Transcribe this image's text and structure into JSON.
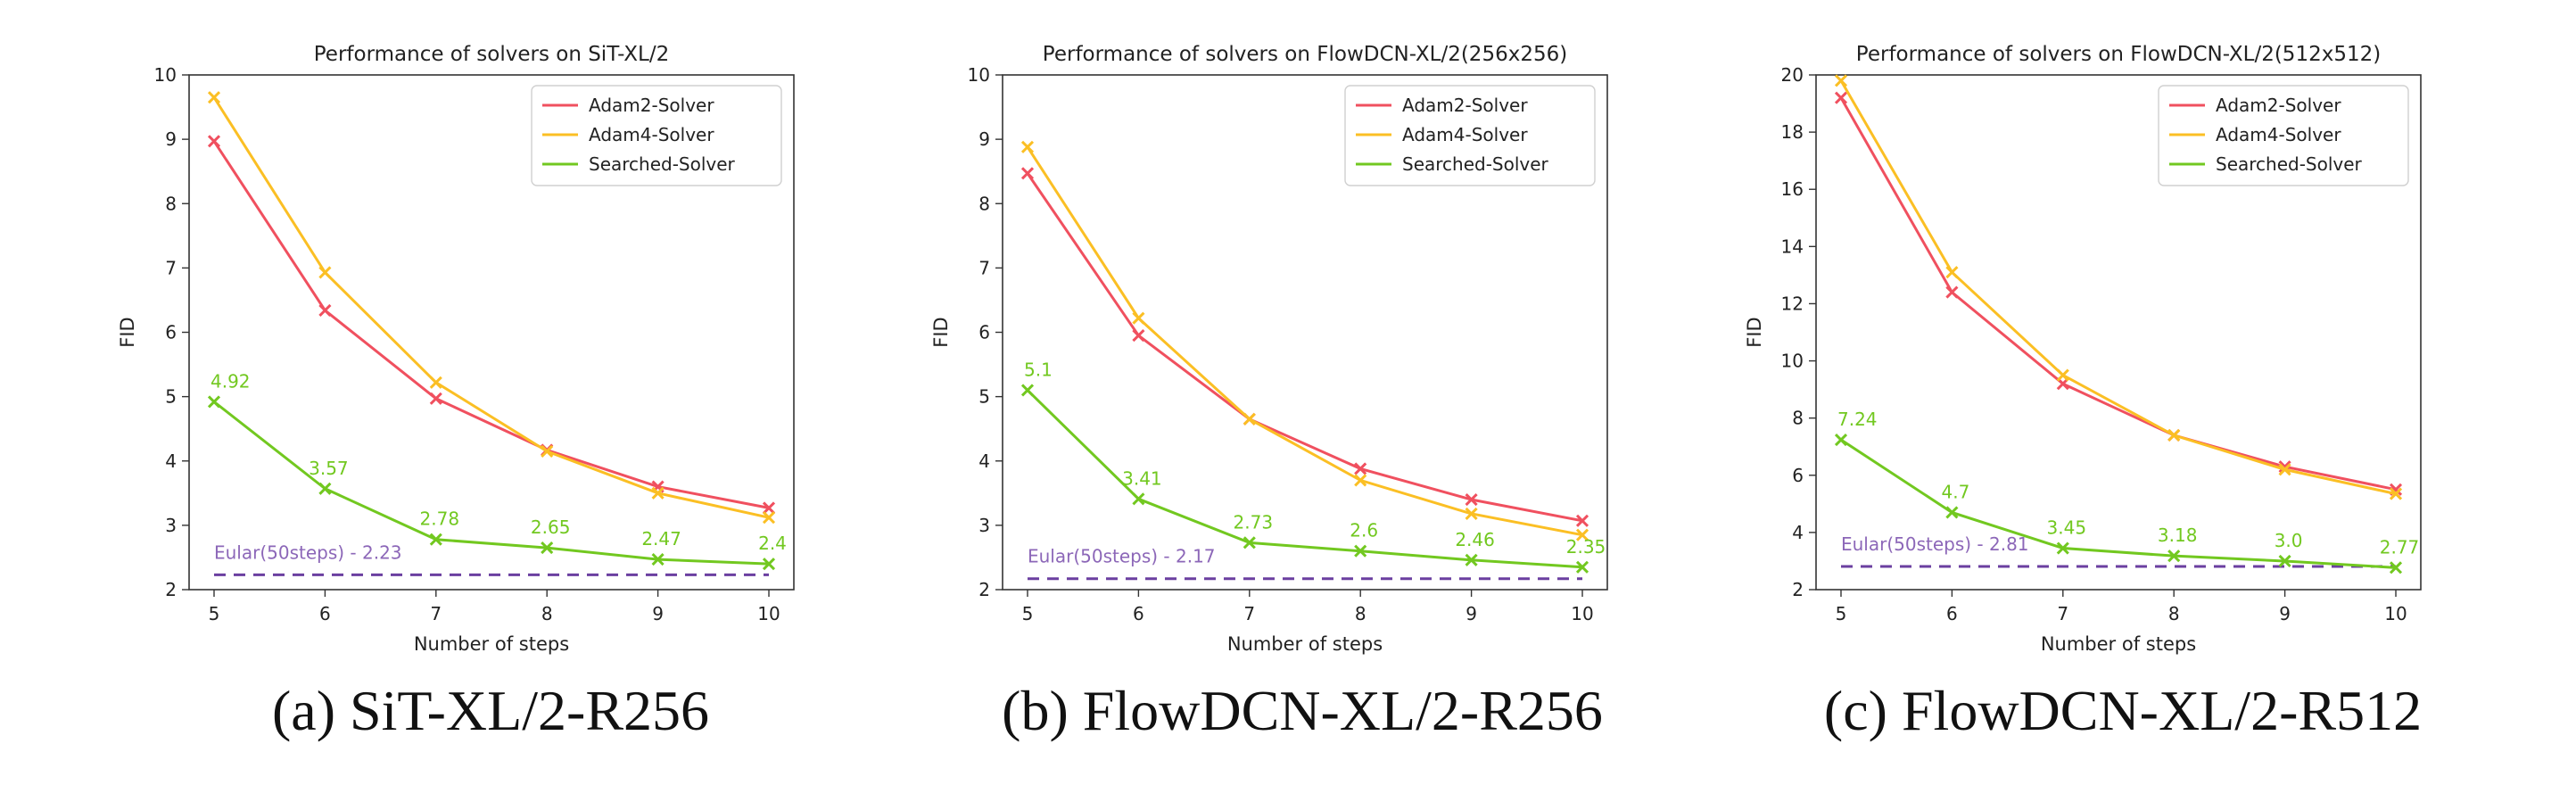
{
  "chart_data": [
    {
      "type": "line",
      "title": "Performance of solvers on SiT-XL/2",
      "xlabel": "Number of steps",
      "ylabel": "FID",
      "x": [
        5,
        6,
        7,
        8,
        9,
        10
      ],
      "xlim": [
        5,
        10
      ],
      "ylim": [
        2,
        10
      ],
      "yticks": [
        2,
        3,
        4,
        5,
        6,
        7,
        8,
        9,
        10
      ],
      "xticks": [
        5,
        6,
        7,
        8,
        9,
        10
      ],
      "grid": false,
      "legend_position": "top-right",
      "series": [
        {
          "name": "Adam2-Solver",
          "color": "#f0505f",
          "values": [
            8.97,
            6.34,
            4.97,
            4.17,
            3.6,
            3.27
          ]
        },
        {
          "name": "Adam4-Solver",
          "color": "#fbbf24",
          "values": [
            9.65,
            6.93,
            5.22,
            4.15,
            3.5,
            3.12
          ]
        },
        {
          "name": "Searched-Solver",
          "color": "#72c820",
          "values": [
            4.92,
            3.57,
            2.78,
            2.65,
            2.47,
            2.4
          ],
          "labels": [
            "4.92",
            "3.57",
            "2.78",
            "2.65",
            "2.47",
            "2.4"
          ]
        }
      ],
      "baseline": {
        "label": "Eular(50steps) - 2.23",
        "value": 2.23,
        "color": "#6b3fa0"
      },
      "caption": "(a) SiT-XL/2-R256"
    },
    {
      "type": "line",
      "title": "Performance of solvers on FlowDCN-XL/2(256x256)",
      "xlabel": "Number of steps",
      "ylabel": "FID",
      "x": [
        5,
        6,
        7,
        8,
        9,
        10
      ],
      "xlim": [
        5,
        10
      ],
      "ylim": [
        2,
        10
      ],
      "yticks": [
        2,
        3,
        4,
        5,
        6,
        7,
        8,
        9,
        10
      ],
      "xticks": [
        5,
        6,
        7,
        8,
        9,
        10
      ],
      "grid": false,
      "legend_position": "top-right",
      "series": [
        {
          "name": "Adam2-Solver",
          "color": "#f0505f",
          "values": [
            8.47,
            5.95,
            4.65,
            3.88,
            3.4,
            3.07
          ]
        },
        {
          "name": "Adam4-Solver",
          "color": "#fbbf24",
          "values": [
            8.88,
            6.22,
            4.65,
            3.7,
            3.18,
            2.85
          ]
        },
        {
          "name": "Searched-Solver",
          "color": "#72c820",
          "values": [
            5.1,
            3.41,
            2.73,
            2.6,
            2.46,
            2.35
          ],
          "labels": [
            "5.1",
            "3.41",
            "2.73",
            "2.6",
            "2.46",
            "2.35"
          ]
        }
      ],
      "baseline": {
        "label": "Eular(50steps) - 2.17",
        "value": 2.17,
        "color": "#6b3fa0"
      },
      "caption": "(b) FlowDCN-XL/2-R256"
    },
    {
      "type": "line",
      "title": "Performance of solvers on FlowDCN-XL/2(512x512)",
      "xlabel": "Number of steps",
      "ylabel": "FID",
      "x": [
        5,
        6,
        7,
        8,
        9,
        10
      ],
      "xlim": [
        5,
        10
      ],
      "ylim": [
        2,
        20
      ],
      "yticks": [
        2,
        4,
        6,
        8,
        10,
        12,
        14,
        16,
        18,
        20
      ],
      "xticks": [
        5,
        6,
        7,
        8,
        9,
        10
      ],
      "grid": false,
      "legend_position": "top-right",
      "series": [
        {
          "name": "Adam2-Solver",
          "color": "#f0505f",
          "values": [
            19.2,
            12.4,
            9.2,
            7.4,
            6.3,
            5.5
          ]
        },
        {
          "name": "Adam4-Solver",
          "color": "#fbbf24",
          "values": [
            19.8,
            13.1,
            9.5,
            7.4,
            6.2,
            5.35
          ]
        },
        {
          "name": "Searched-Solver",
          "color": "#72c820",
          "values": [
            7.24,
            4.7,
            3.45,
            3.18,
            3.0,
            2.77
          ],
          "labels": [
            "7.24",
            "4.7",
            "3.45",
            "3.18",
            "3.0",
            "2.77"
          ]
        }
      ],
      "baseline": {
        "label": "Eular(50steps) - 2.81",
        "value": 2.81,
        "color": "#6b3fa0"
      },
      "caption": "(c) FlowDCN-XL/2-R512"
    }
  ]
}
